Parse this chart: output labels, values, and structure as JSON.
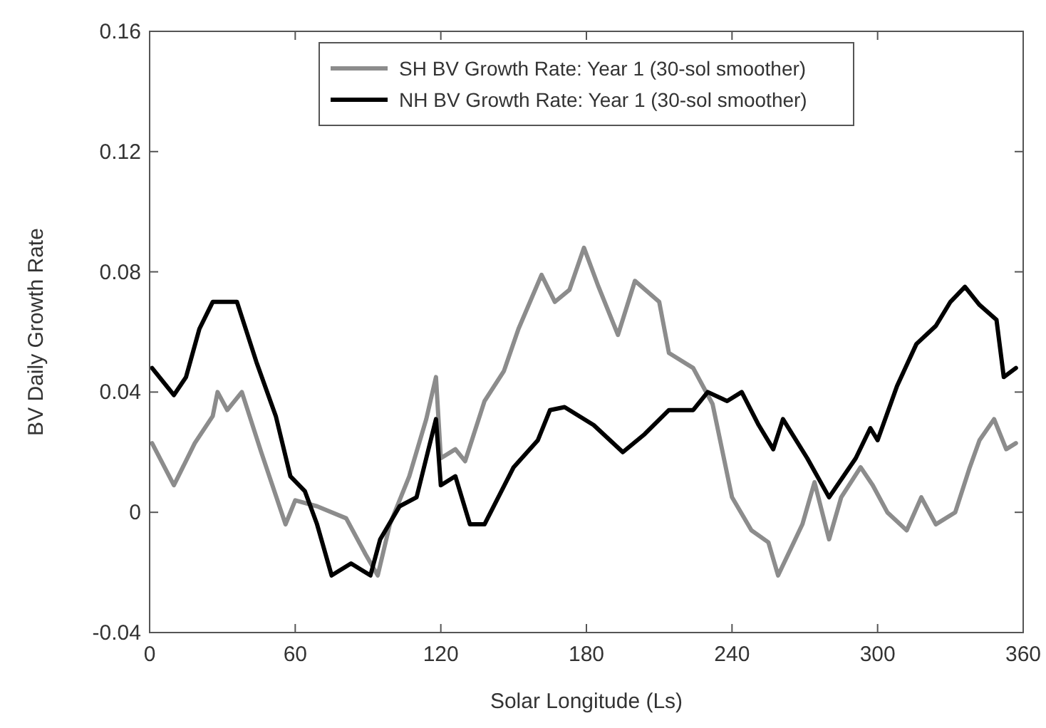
{
  "chart_data": {
    "type": "line",
    "xlabel": "Solar Longitude (Ls)",
    "ylabel": "BV Daily Growth Rate",
    "xlim": [
      0,
      360
    ],
    "xticks": [
      0,
      60,
      120,
      180,
      240,
      300,
      360
    ],
    "ylim": [
      -0.04,
      0.16
    ],
    "yticks": [
      -0.04,
      0,
      0.04,
      0.08,
      0.12,
      0.16
    ],
    "grid": false,
    "legend": "top",
    "line_style": "solid",
    "marker": "none",
    "series": [
      {
        "name": "SH BV Growth Rate: Year 1 (30-sol smoother)",
        "color": "#8c8c8c",
        "x": [
          1,
          10,
          18.6,
          26,
          28,
          32,
          38,
          46,
          56,
          60,
          69,
          81,
          89,
          94,
          99,
          107,
          114,
          118,
          120,
          126,
          130,
          138,
          146,
          152,
          161.5,
          167,
          173,
          179,
          185,
          193,
          200,
          210,
          214,
          224,
          232,
          240,
          248,
          255,
          259,
          269,
          274,
          280,
          285,
          293,
          298,
          304,
          312,
          318,
          324,
          332,
          338,
          342,
          348,
          353,
          357
        ],
        "values": [
          0.023,
          0.009,
          0.023,
          0.032,
          0.04,
          0.034,
          0.04,
          0.02,
          -0.004,
          0.004,
          0.002,
          -0.002,
          -0.014,
          -0.021,
          -0.004,
          0.012,
          0.031,
          0.045,
          0.018,
          0.021,
          0.017,
          0.037,
          0.047,
          0.061,
          0.079,
          0.07,
          0.074,
          0.088,
          0.075,
          0.059,
          0.077,
          0.07,
          0.053,
          0.048,
          0.036,
          0.005,
          -0.006,
          -0.01,
          -0.021,
          -0.004,
          0.01,
          -0.009,
          0.005,
          0.015,
          0.009,
          0,
          -0.006,
          0.005,
          -0.004,
          0,
          0.015,
          0.024,
          0.031,
          0.021,
          0.023
        ]
      },
      {
        "name": "NH BV Growth Rate: Year 1 (30-sol smoother)",
        "color": "#000000",
        "x": [
          1,
          10,
          15,
          20.5,
          26,
          36,
          44,
          52,
          58,
          64,
          69,
          75,
          83,
          91,
          95,
          103,
          110,
          118,
          120,
          126,
          132,
          138,
          150,
          160,
          165,
          171,
          183,
          195,
          204,
          214,
          224,
          230,
          238,
          244,
          251,
          257,
          261,
          271,
          280,
          291,
          297,
          300,
          308,
          316,
          324,
          330,
          336,
          342,
          349,
          352,
          357
        ],
        "values": [
          0.048,
          0.039,
          0.045,
          0.061,
          0.07,
          0.07,
          0.05,
          0.032,
          0.012,
          0.007,
          -0.004,
          -0.021,
          -0.017,
          -0.021,
          -0.009,
          0.002,
          0.005,
          0.031,
          0.009,
          0.012,
          -0.004,
          -0.004,
          0.015,
          0.024,
          0.034,
          0.035,
          0.029,
          0.02,
          0.026,
          0.034,
          0.034,
          0.04,
          0.037,
          0.04,
          0.029,
          0.021,
          0.031,
          0.018,
          0.005,
          0.018,
          0.028,
          0.024,
          0.042,
          0.056,
          0.062,
          0.07,
          0.075,
          0.069,
          0.064,
          0.045,
          0.048
        ]
      }
    ]
  }
}
